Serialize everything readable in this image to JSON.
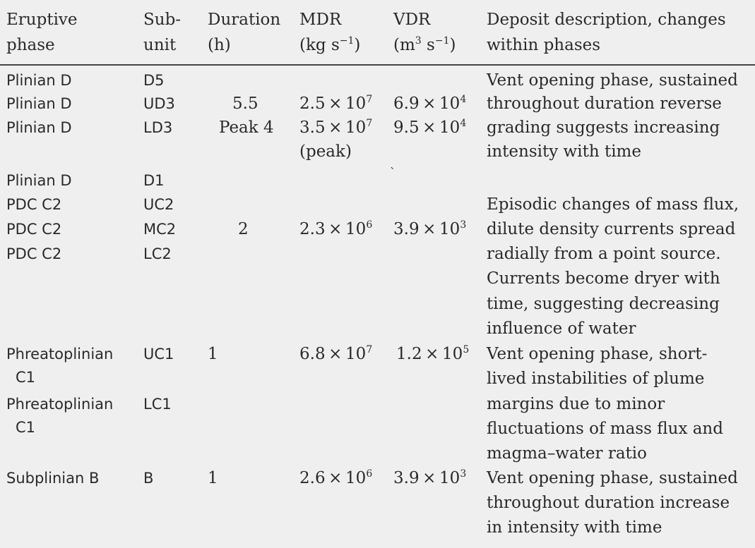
{
  "header": {
    "eruptive_phase": [
      "Eruptive",
      "phase"
    ],
    "subunit": [
      "Sub-",
      "unit"
    ],
    "duration": [
      "Duration",
      "(h)"
    ],
    "mdr": [
      "MDR",
      "(kg s",
      "−1",
      ")"
    ],
    "vdr": [
      "VDR",
      "(m",
      "3",
      " s",
      "−1",
      ")"
    ],
    "description": [
      "Deposit description, changes",
      "within phases"
    ]
  },
  "rows": [
    {
      "phase": "Plinian D",
      "subunit": "D5"
    },
    {
      "phase": "Plinian D",
      "subunit": "UD3",
      "duration": "5.5",
      "mdr_base": "2.5 × 10",
      "mdr_exp": "7",
      "vdr_base": "6.9 × 10",
      "vdr_exp": "4"
    },
    {
      "phase": "Plinian D",
      "subunit": "LD3",
      "duration": "Peak 4",
      "mdr_base": "3.5 × 10",
      "mdr_exp": "7",
      "mdr_note": "(peak)",
      "vdr_base": "9.5 × 10",
      "vdr_exp": "4"
    },
    {
      "phase": "Plinian D",
      "subunit": "D1",
      "vdr_mark": "`"
    },
    {
      "phase": "PDC C2",
      "subunit": "UC2"
    },
    {
      "phase": "PDC C2",
      "subunit": "MC2",
      "duration": "2",
      "mdr_base": "2.3 × 10",
      "mdr_exp": "6",
      "vdr_base": "3.9 × 10",
      "vdr_exp": "3"
    },
    {
      "phase": "PDC C2",
      "subunit": "LC2"
    },
    {
      "phase": [
        "Phreatoplinian",
        "C1"
      ],
      "subunit": "UC1",
      "duration": "1",
      "mdr_base": "6.8 × 10",
      "mdr_exp": "7",
      "vdr_base": "1.2 × 10",
      "vdr_exp": "5"
    },
    {
      "phase": [
        "Phreatoplinian",
        "C1"
      ],
      "subunit": "LC1"
    },
    {
      "phase": "Subplinian B",
      "subunit": "B",
      "duration": "1",
      "mdr_base": "2.6 × 10",
      "mdr_exp": "6",
      "vdr_base": "3.9 × 10",
      "vdr_exp": "3"
    }
  ],
  "descriptions": {
    "plinian_d": [
      "Vent opening phase, sustained",
      "throughout duration reverse",
      "grading suggests increasing",
      "intensity with time"
    ],
    "pdc_c2": [
      "Episodic changes of mass flux,",
      "dilute density currents spread",
      "radially from a point source.",
      "Currents become dryer with",
      "time, suggesting decreasing",
      "influence of water"
    ],
    "phreatoplinian_c1": [
      "Vent opening phase, short-",
      "lived instabilities of plume",
      "margins due to minor",
      "fluctuations of mass flux and",
      "magma–water ratio"
    ],
    "subplinian_b": [
      "Vent opening phase, sustained",
      "throughout duration increase",
      "in intensity with time"
    ]
  }
}
